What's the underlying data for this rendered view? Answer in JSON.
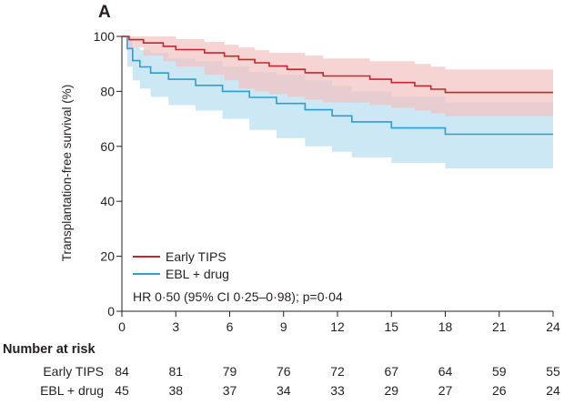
{
  "chart_data": {
    "type": "line",
    "panel_label": "A",
    "ylabel": "Transplantation-free survival (%)",
    "xlabel": "",
    "ylim": [
      0,
      100
    ],
    "xlim": [
      0,
      24
    ],
    "y_ticks": [
      0,
      20,
      40,
      60,
      80,
      100
    ],
    "x_ticks": [
      0,
      3,
      6,
      9,
      12,
      15,
      18,
      21,
      24
    ],
    "series": [
      {
        "name": "Early TIPS",
        "color": "#c1272d",
        "band_color": "#f2c2c0",
        "x": [
          0,
          0.4,
          1.2,
          2.3,
          3.0,
          3.6,
          4.6,
          5.7,
          6.5,
          7.4,
          8.2,
          9.2,
          10.2,
          11.2,
          12.5,
          13.8,
          15.0,
          16.3,
          17.2,
          18.0,
          19.0,
          24.0
        ],
        "y": [
          100,
          98.8,
          97.6,
          96.4,
          95.2,
          95.2,
          94.0,
          92.8,
          91.6,
          90.4,
          89.2,
          88.0,
          86.8,
          85.6,
          85.6,
          84.4,
          83.2,
          82.0,
          80.8,
          79.6,
          79.6,
          79.6
        ],
        "ci_lower": [
          100,
          96,
          93,
          91,
          89,
          89,
          86,
          84,
          81,
          80,
          79,
          78,
          77,
          76,
          76,
          75,
          74,
          73,
          72,
          71,
          71,
          71
        ],
        "ci_upper": [
          100,
          100,
          100,
          100,
          99,
          99,
          98,
          97,
          96,
          95,
          94,
          94,
          93,
          92,
          92,
          91,
          91,
          90,
          89,
          88,
          88,
          88
        ]
      },
      {
        "name": "EBL + drug",
        "color": "#2b9fcf",
        "band_color": "#cbe8f4",
        "x": [
          0,
          0.3,
          0.6,
          1.0,
          1.6,
          2.6,
          4.1,
          5.6,
          7.1,
          8.6,
          10.2,
          11.7,
          12.8,
          14.0,
          15.0,
          16.6,
          18.0,
          24.0
        ],
        "y": [
          100,
          95.6,
          91.2,
          88.9,
          86.7,
          84.4,
          82.2,
          80.0,
          77.8,
          75.6,
          73.3,
          71.1,
          68.9,
          68.9,
          66.7,
          66.7,
          64.4,
          64.4
        ],
        "ci_lower": [
          100,
          89,
          84,
          81,
          78,
          75,
          73,
          70,
          66,
          63,
          60,
          58,
          56,
          56,
          54,
          54,
          52,
          52
        ],
        "ci_upper": [
          100,
          99,
          96,
          95,
          94,
          92,
          91,
          89,
          87,
          86,
          84,
          82,
          80,
          80,
          78,
          78,
          76,
          76
        ]
      }
    ],
    "annotation": "HR 0·50 (95% CI 0·25–0·98); p=0·04",
    "legend_position": "bottom-left",
    "grid": false,
    "risk_table": {
      "title": "Number at risk",
      "times": [
        0,
        3,
        6,
        9,
        12,
        15,
        18,
        21,
        24
      ],
      "rows": [
        {
          "label": "Early TIPS",
          "values": [
            84,
            81,
            79,
            76,
            72,
            67,
            64,
            59,
            55
          ]
        },
        {
          "label": "EBL + drug",
          "values": [
            45,
            38,
            37,
            34,
            33,
            29,
            27,
            26,
            24
          ]
        }
      ]
    }
  }
}
